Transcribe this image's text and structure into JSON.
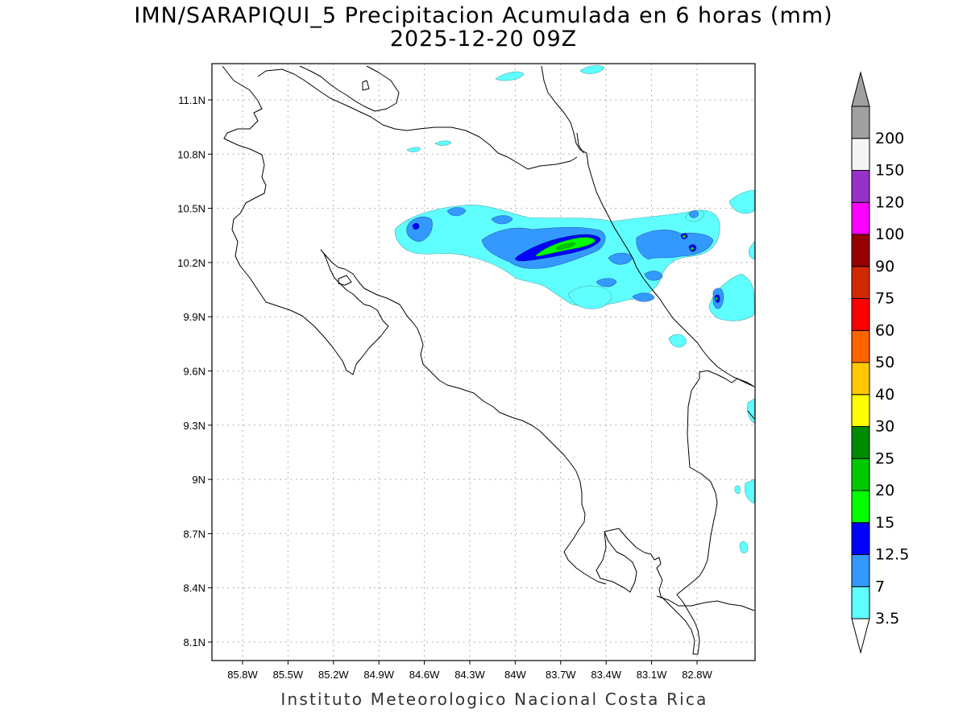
{
  "title": {
    "line1": "IMN/SARAPIQUI_5 Precipitacion Acumulada en 6 horas (mm)",
    "line2": "2025-12-20 09Z"
  },
  "credit": "Instituto Meteorologico Nacional Costa Rica",
  "map": {
    "region": "Costa Rica",
    "lon_range": [
      -86.0,
      -83.0
    ],
    "lat_range": [
      8.0,
      11.3
    ],
    "grid": "dotted",
    "x_ticks": [
      "85.8W",
      "85.5W",
      "85.2W",
      "84.9W",
      "84.6W",
      "84.3W",
      "84W",
      "83.7W",
      "83.4W",
      "83.1W",
      "82.8W"
    ],
    "y_ticks": [
      "11.1N",
      "10.8N",
      "10.5N",
      "10.2N",
      "9.9N",
      "9.6N",
      "9.3N",
      "9N",
      "8.7N",
      "8.4N",
      "8.1N"
    ]
  },
  "colorbar": {
    "labels": [
      "3.5",
      "7",
      "12.5",
      "15",
      "20",
      "25",
      "30",
      "40",
      "50",
      "60",
      "75",
      "90",
      "100",
      "120",
      "150",
      "200"
    ],
    "colors": [
      "#60ffff",
      "#3399ff",
      "#0000ff",
      "#00ff00",
      "#00c800",
      "#008c00",
      "#ffff00",
      "#ffc800",
      "#ff6400",
      "#ff0000",
      "#d22800",
      "#960000",
      "#ff00ff",
      "#9632c8",
      "#f5f5f5",
      "#a0a0a0"
    ],
    "extend": "both"
  }
}
